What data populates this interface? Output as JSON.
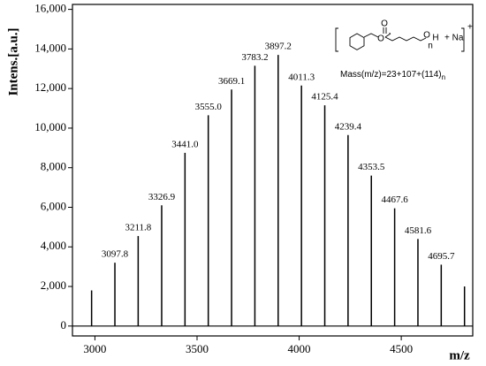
{
  "chart_data": {
    "type": "stick",
    "x_axis_label": "m/z",
    "y_axis_label": "Intens.[a.u.]",
    "x": [
      2983.7,
      3097.8,
      3211.8,
      3326.9,
      3441.0,
      3555.0,
      3669.1,
      3783.2,
      3897.2,
      4011.3,
      4125.4,
      4239.4,
      4353.5,
      4467.6,
      4581.6,
      4695.7,
      4809.7
    ],
    "x_labels": [
      null,
      "3097.8",
      "3211.8",
      "3326.9",
      "3441.0",
      "3555.0",
      "3669.1",
      "3783.2",
      "3897.2",
      "4011.3",
      "4125.4",
      "4239.4",
      "4353.5",
      "4467.6",
      "4581.6",
      "4695.7",
      null
    ],
    "values": [
      1800,
      3200,
      4550,
      6100,
      8750,
      10650,
      11950,
      13150,
      13700,
      12150,
      11150,
      9650,
      7600,
      5950,
      4400,
      3100,
      2000
    ],
    "color": "#000000",
    "xlim": [
      2890,
      4850
    ],
    "ylim": [
      -500,
      16250
    ],
    "xticks": [
      3000,
      3500,
      4000,
      4500
    ],
    "yticks": [
      0,
      {
        "value": 2000,
        "label": "2,000"
      },
      {
        "value": 4000,
        "label": "4,000"
      },
      {
        "value": 6000,
        "label": "6,000"
      },
      {
        "value": 8000,
        "label": "8,000"
      },
      {
        "value": 10000,
        "label": "10,000"
      },
      {
        "value": 12000,
        "label": "12,000"
      },
      {
        "value": 14000,
        "label": "14,000"
      },
      {
        "value": 16000,
        "label": "16,000"
      }
    ],
    "inset": {
      "carbonyl_o": "O",
      "ester_o": "O",
      "end_o": "O",
      "end_h": "H",
      "repeat": "n",
      "cation": "+ Na",
      "charge": "+",
      "formula": "Mass(m/z)=23+107+(114)",
      "formula_sub": "n"
    }
  }
}
